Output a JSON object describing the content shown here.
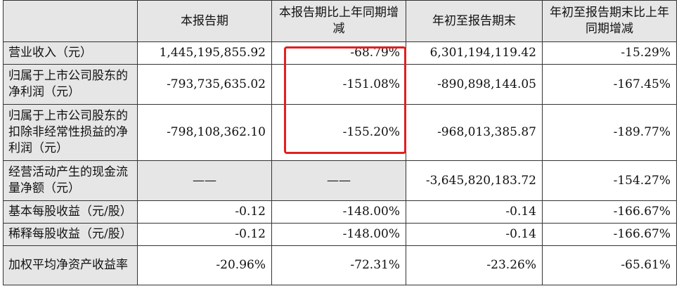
{
  "table": {
    "headers": [
      "",
      "本报告期",
      "本报告期比上年同期增减",
      "年初至报告期末",
      "年初至报告期末比上年同期增减"
    ],
    "rows": [
      {
        "label": "营业收入（元）",
        "cells": [
          "1,445,195,855.92",
          "-68.79%",
          "6,301,194,119.42",
          "-15.29%"
        ]
      },
      {
        "label": "归属于上市公司股东的净利润（元）",
        "cells": [
          "-793,735,635.02",
          "-151.08%",
          "-890,898,144.05",
          "-167.45%"
        ]
      },
      {
        "label": "归属于上市公司股东的扣除非经常性损益的净利润（元）",
        "cells": [
          "-798,108,362.10",
          "-155.20%",
          "-968,013,385.87",
          "-189.77%"
        ]
      },
      {
        "label": "经营活动产生的现金流量净额（元）",
        "cells": [
          "——",
          "——",
          "-3,645,820,183.72",
          "-154.27%"
        ]
      },
      {
        "label": "基本每股收益（元/股）",
        "cells": [
          "-0.12",
          "-148.00%",
          "-0.14",
          "-166.67%"
        ]
      },
      {
        "label": "稀释每股收益（元/股）",
        "cells": [
          "-0.12",
          "-148.00%",
          "-0.14",
          "-166.67%"
        ]
      },
      {
        "label": "加权平均净资产收益率",
        "cells": [
          "-20.96%",
          "-72.31%",
          "-23.26%",
          "-65.61%"
        ]
      }
    ]
  },
  "highlight_color": "#e02020"
}
